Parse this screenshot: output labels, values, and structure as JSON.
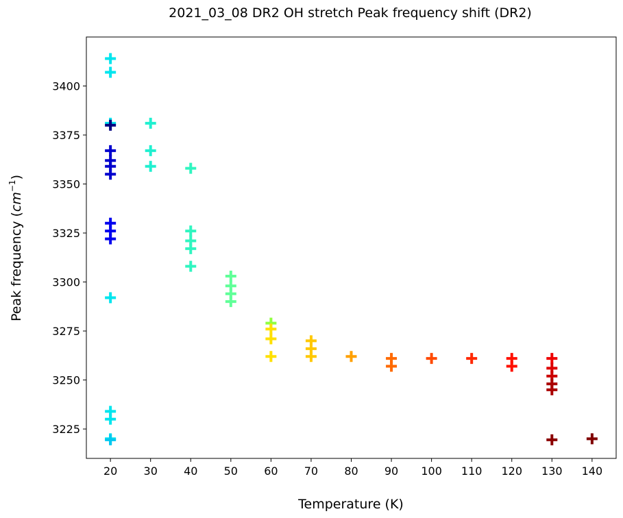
{
  "chart_data": {
    "type": "scatter",
    "title": "2021_03_08 DR2 OH stretch Peak frequency shift (DR2)",
    "xlabel": "Temperature (K)",
    "ylabel_main": "Peak frequency (",
    "ylabel_unit": "cm",
    "ylabel_exp": "−1",
    "ylabel_end": ")",
    "xlim": [
      14,
      146
    ],
    "ylim": [
      3210,
      3425
    ],
    "xticks": [
      20,
      30,
      40,
      50,
      60,
      70,
      80,
      90,
      100,
      110,
      120,
      130,
      140
    ],
    "xtick_labels": [
      "20",
      "30",
      "40",
      "50",
      "60",
      "70",
      "80",
      "90",
      "100",
      "110",
      "120",
      "130",
      "140"
    ],
    "yticks": [
      3225,
      3250,
      3275,
      3300,
      3325,
      3350,
      3375,
      3400
    ],
    "ytick_labels": [
      "3225",
      "3250",
      "3275",
      "3300",
      "3325",
      "3350",
      "3375",
      "3400"
    ],
    "marker": "plus",
    "grid": false,
    "points": [
      {
        "x": 20,
        "y": 3414,
        "color": "#00e5ee"
      },
      {
        "x": 20,
        "y": 3407,
        "color": "#00e5ee"
      },
      {
        "x": 20,
        "y": 3381,
        "color": "#00e5ee"
      },
      {
        "x": 20,
        "y": 3380,
        "color": "#000080"
      },
      {
        "x": 20,
        "y": 3367,
        "color": "#0000cd"
      },
      {
        "x": 20,
        "y": 3362,
        "color": "#0000cd"
      },
      {
        "x": 20,
        "y": 3359,
        "color": "#0000cd"
      },
      {
        "x": 20,
        "y": 3355,
        "color": "#0000cd"
      },
      {
        "x": 20,
        "y": 3330,
        "color": "#0000ee"
      },
      {
        "x": 20,
        "y": 3326,
        "color": "#0000ee"
      },
      {
        "x": 20,
        "y": 3322,
        "color": "#0000ee"
      },
      {
        "x": 20,
        "y": 3292,
        "color": "#00e5ee"
      },
      {
        "x": 20,
        "y": 3234,
        "color": "#00e5ee"
      },
      {
        "x": 20,
        "y": 3230,
        "color": "#00e5ee"
      },
      {
        "x": 20,
        "y": 3220,
        "color": "#00e5ee"
      },
      {
        "x": 20,
        "y": 3219.5,
        "color": "#00c8f0"
      },
      {
        "x": 30,
        "y": 3381,
        "color": "#20f0d0"
      },
      {
        "x": 30,
        "y": 3367,
        "color": "#20f0d0"
      },
      {
        "x": 30,
        "y": 3359,
        "color": "#20f0d0"
      },
      {
        "x": 40,
        "y": 3358,
        "color": "#30f5c0"
      },
      {
        "x": 40,
        "y": 3326,
        "color": "#30f5c0"
      },
      {
        "x": 40,
        "y": 3321,
        "color": "#30f5c0"
      },
      {
        "x": 40,
        "y": 3317,
        "color": "#30f5c0"
      },
      {
        "x": 40,
        "y": 3308,
        "color": "#30f5c0"
      },
      {
        "x": 50,
        "y": 3303,
        "color": "#60ff98"
      },
      {
        "x": 50,
        "y": 3298,
        "color": "#60ff98"
      },
      {
        "x": 50,
        "y": 3294,
        "color": "#60ff98"
      },
      {
        "x": 50,
        "y": 3290,
        "color": "#60ff98"
      },
      {
        "x": 60,
        "y": 3279,
        "color": "#90ff40"
      },
      {
        "x": 60,
        "y": 3276,
        "color": "#ffe000"
      },
      {
        "x": 60,
        "y": 3271,
        "color": "#ffe000"
      },
      {
        "x": 60,
        "y": 3262,
        "color": "#ffe000"
      },
      {
        "x": 70,
        "y": 3270,
        "color": "#ffc800"
      },
      {
        "x": 70,
        "y": 3266,
        "color": "#ffc800"
      },
      {
        "x": 70,
        "y": 3262,
        "color": "#ffc800"
      },
      {
        "x": 80,
        "y": 3262,
        "color": "#ffa000"
      },
      {
        "x": 90,
        "y": 3261,
        "color": "#ff6a00"
      },
      {
        "x": 90,
        "y": 3257,
        "color": "#ff6a00"
      },
      {
        "x": 100,
        "y": 3261,
        "color": "#ff4a00"
      },
      {
        "x": 110,
        "y": 3261,
        "color": "#ff2800"
      },
      {
        "x": 120,
        "y": 3261,
        "color": "#ff1000"
      },
      {
        "x": 120,
        "y": 3257,
        "color": "#ff1000"
      },
      {
        "x": 130,
        "y": 3261,
        "color": "#ee0000"
      },
      {
        "x": 130,
        "y": 3256,
        "color": "#dd0000"
      },
      {
        "x": 130,
        "y": 3252,
        "color": "#cc0000"
      },
      {
        "x": 130,
        "y": 3248,
        "color": "#aa0000"
      },
      {
        "x": 130,
        "y": 3245,
        "color": "#aa0000"
      },
      {
        "x": 130,
        "y": 3219.5,
        "color": "#8b0000"
      },
      {
        "x": 140,
        "y": 3220,
        "color": "#800000"
      }
    ]
  }
}
